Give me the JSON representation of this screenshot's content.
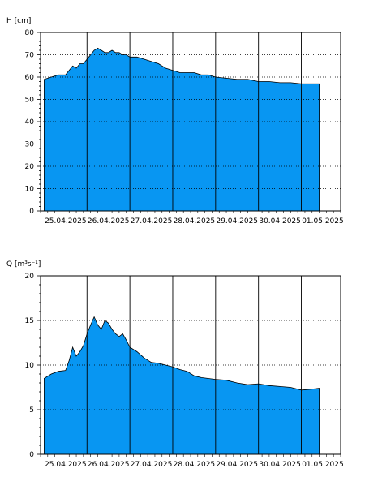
{
  "chart_data": [
    {
      "type": "area",
      "ylabel": "H [cm]",
      "ylim": [
        0,
        80
      ],
      "yticks": [
        0,
        10,
        20,
        30,
        40,
        50,
        60,
        70,
        80
      ],
      "xlim": [
        "2025-04-24T22:00",
        "2025-05-01T22:00"
      ],
      "xticks": [
        "25.04.2025",
        "26.04.2025",
        "27.04.2025",
        "28.04.2025",
        "29.04.2025",
        "30.04.2025",
        "01.05.2025"
      ],
      "grid": {
        "horizontal": "dotted",
        "vertical_at_day_boundaries": "solid"
      },
      "fill_color": "#0896f2",
      "series": [
        {
          "x": [
            "2025-04-25T00:00",
            "2025-04-25T04:00",
            "2025-04-25T08:00",
            "2025-04-25T12:00",
            "2025-04-25T14:00",
            "2025-04-25T16:00",
            "2025-04-25T18:00",
            "2025-04-25T20:00",
            "2025-04-25T22:00",
            "2025-04-26T00:00",
            "2025-04-26T02:00",
            "2025-04-26T04:00",
            "2025-04-26T06:00",
            "2025-04-26T08:00",
            "2025-04-26T10:00",
            "2025-04-26T12:00",
            "2025-04-26T14:00",
            "2025-04-26T16:00",
            "2025-04-26T18:00",
            "2025-04-26T20:00",
            "2025-04-26T22:00",
            "2025-04-27T00:00",
            "2025-04-27T04:00",
            "2025-04-27T08:00",
            "2025-04-27T12:00",
            "2025-04-27T16:00",
            "2025-04-27T20:00",
            "2025-04-28T00:00",
            "2025-04-28T04:00",
            "2025-04-28T08:00",
            "2025-04-28T12:00",
            "2025-04-28T16:00",
            "2025-04-28T20:00",
            "2025-04-29T00:00",
            "2025-04-29T06:00",
            "2025-04-29T12:00",
            "2025-04-29T18:00",
            "2025-04-30T00:00",
            "2025-04-30T06:00",
            "2025-04-30T12:00",
            "2025-04-30T18:00",
            "2025-05-01T00:00",
            "2025-05-01T06:00",
            "2025-05-01T10:00"
          ],
          "y": [
            59,
            60,
            61,
            61,
            63,
            65,
            64,
            66,
            66,
            68,
            70,
            72,
            73,
            72,
            71,
            71,
            72,
            71,
            71,
            70,
            70,
            69,
            69,
            68,
            67,
            66,
            64,
            63,
            62,
            62,
            62,
            61,
            61,
            60,
            59.5,
            59,
            59,
            58,
            58,
            57.5,
            57.5,
            57,
            57,
            57
          ]
        }
      ]
    },
    {
      "type": "area",
      "ylabel": "Q [m³s⁻¹]",
      "ylim": [
        0,
        20
      ],
      "yticks": [
        0,
        5,
        10,
        15,
        20
      ],
      "xlim": [
        "2025-04-24T22:00",
        "2025-05-01T22:00"
      ],
      "xticks": [
        "25.04.2025",
        "26.04.2025",
        "27.04.2025",
        "28.04.2025",
        "29.04.2025",
        "30.04.2025",
        "01.05.2025"
      ],
      "grid": {
        "horizontal": "dotted",
        "vertical_at_day_boundaries": "solid"
      },
      "fill_color": "#0896f2",
      "series": [
        {
          "x": [
            "2025-04-25T00:00",
            "2025-04-25T04:00",
            "2025-04-25T08:00",
            "2025-04-25T12:00",
            "2025-04-25T14:00",
            "2025-04-25T16:00",
            "2025-04-25T18:00",
            "2025-04-25T20:00",
            "2025-04-25T22:00",
            "2025-04-26T00:00",
            "2025-04-26T02:00",
            "2025-04-26T04:00",
            "2025-04-26T06:00",
            "2025-04-26T08:00",
            "2025-04-26T10:00",
            "2025-04-26T12:00",
            "2025-04-26T14:00",
            "2025-04-26T16:00",
            "2025-04-26T18:00",
            "2025-04-26T20:00",
            "2025-04-26T22:00",
            "2025-04-27T00:00",
            "2025-04-27T04:00",
            "2025-04-27T08:00",
            "2025-04-27T12:00",
            "2025-04-27T16:00",
            "2025-04-27T20:00",
            "2025-04-28T00:00",
            "2025-04-28T04:00",
            "2025-04-28T08:00",
            "2025-04-28T12:00",
            "2025-04-28T16:00",
            "2025-04-28T20:00",
            "2025-04-29T00:00",
            "2025-04-29T06:00",
            "2025-04-29T12:00",
            "2025-04-29T18:00",
            "2025-04-30T00:00",
            "2025-04-30T06:00",
            "2025-04-30T12:00",
            "2025-04-30T18:00",
            "2025-05-01T00:00",
            "2025-05-01T06:00",
            "2025-05-01T10:00"
          ],
          "y": [
            8.5,
            9,
            9.3,
            9.4,
            10.5,
            12,
            11,
            11.5,
            12.2,
            13.5,
            14.5,
            15.4,
            14.5,
            14,
            15,
            14.7,
            14,
            13.5,
            13.2,
            13.5,
            12.8,
            12,
            11.5,
            10.8,
            10.3,
            10.2,
            10,
            9.8,
            9.5,
            9.3,
            8.8,
            8.6,
            8.5,
            8.4,
            8.3,
            8,
            7.8,
            7.9,
            7.7,
            7.6,
            7.5,
            7.2,
            7.3,
            7.4
          ]
        }
      ]
    }
  ]
}
